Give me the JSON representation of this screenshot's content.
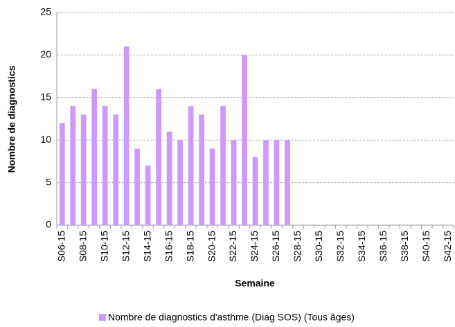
{
  "chart_data": {
    "type": "bar",
    "x_label": "Semaine",
    "y_label": "Nombre de diagnostics",
    "categories": [
      "S06-15",
      null,
      "S08-15",
      null,
      "S10-15",
      null,
      "S12-15",
      null,
      "S14-15",
      null,
      "S16-15",
      null,
      "S18-15",
      null,
      "S20-15",
      null,
      "S22-15",
      null,
      "S24-15",
      null,
      "S26-15",
      null,
      "S28-15",
      null,
      "S30-15",
      null,
      "S32-15",
      null,
      "S34-15",
      null,
      "S36-15",
      null,
      "S38-15",
      null,
      "S40-15",
      null,
      "S42-15"
    ],
    "series": [
      {
        "name": "Nombre de diagnostics d'asthme (Diag SOS) (Tous âges)",
        "color": "#cc99ff",
        "values": [
          12,
          14,
          13,
          16,
          14,
          13,
          21,
          9,
          7,
          16,
          11,
          10,
          14,
          13,
          9,
          14,
          10,
          20,
          8,
          10,
          10,
          10,
          null,
          null,
          null,
          null,
          null,
          null,
          null,
          null,
          null,
          null,
          null,
          null,
          null,
          null,
          null
        ]
      }
    ],
    "ylim": [
      0,
      25
    ],
    "yticks": [
      0,
      5,
      10,
      15,
      20,
      25
    ],
    "grid": true,
    "legend": "bottom"
  }
}
